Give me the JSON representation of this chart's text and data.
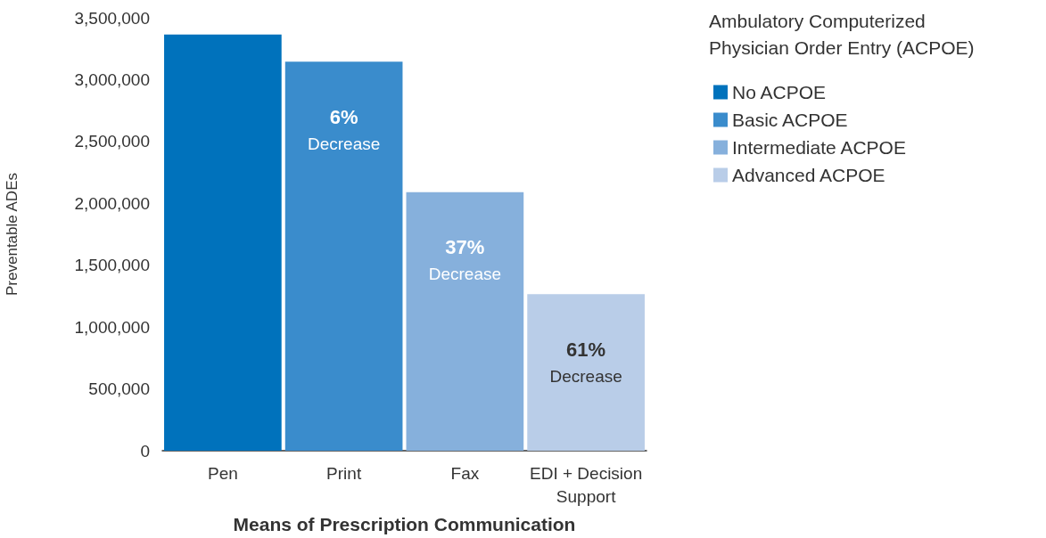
{
  "chart_data": {
    "type": "bar",
    "xlabel": "Means of Prescription Communication",
    "ylabel": "Preventable ADEs",
    "legend_title": "Ambulatory Computerized Physician Order Entry (ACPOE)",
    "categories": [
      "Pen",
      "Print",
      "Fax",
      "EDI + Decision Support"
    ],
    "series": [
      {
        "name": "No ACPOE",
        "color": "#0072bc",
        "values": [
          3365000,
          null,
          null,
          null
        ]
      },
      {
        "name": "Basic ACPOE",
        "color": "#3a8ccc",
        "values": [
          null,
          3145000,
          null,
          null
        ]
      },
      {
        "name": "Intermediate ACPOE",
        "color": "#86b0dc",
        "values": [
          null,
          null,
          2090000,
          null
        ]
      },
      {
        "name": "Advanced ACPOE",
        "color": "#b9cde8",
        "values": [
          null,
          null,
          null,
          1265000
        ]
      }
    ],
    "ylim": [
      0,
      3500000
    ],
    "yticks": [
      0,
      {
        "value": 500000,
        "label": "500,000"
      },
      {
        "value": 1000000,
        "label": "1,000,000"
      },
      {
        "value": 1500000,
        "label": "1,500,000"
      },
      {
        "value": 2000000,
        "label": "2,000,000"
      },
      {
        "value": 2500000,
        "label": "2,500,000"
      },
      {
        "value": 3000000,
        "label": "3,000,000"
      },
      {
        "value": 3500000,
        "label": "3,500,000"
      }
    ],
    "grid": false,
    "legend": "top right",
    "annotations": [
      "6%\nDecrease",
      "37%\nDecrease",
      "61%\nDecrease"
    ]
  }
}
